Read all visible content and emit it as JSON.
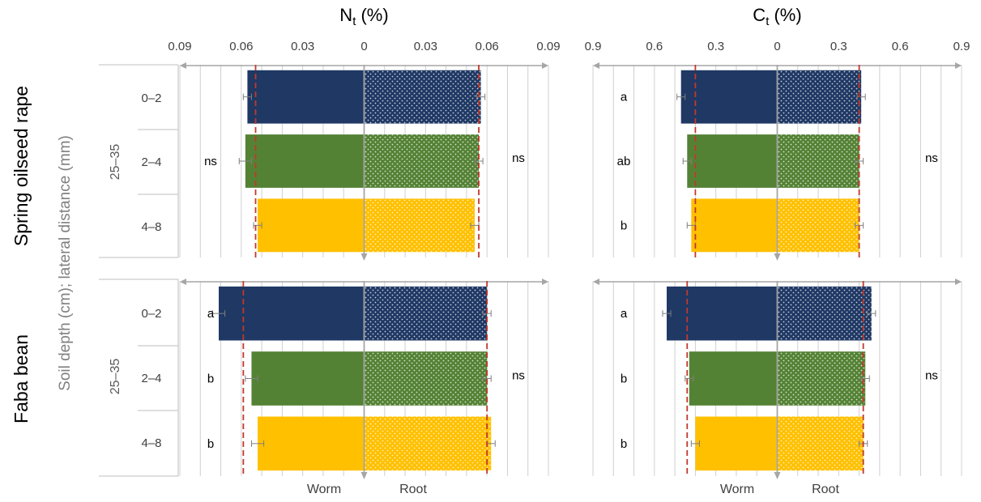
{
  "y_axis": {
    "row_labels": [
      "Spring oilseed rape",
      "Faba bean"
    ],
    "group_label": "Soil depth (cm); lateral distance (mm)",
    "soil_depth": "25–35",
    "distances": [
      "0–2",
      "2–4",
      "4–8"
    ]
  },
  "x_axis_labels": {
    "left": "Worm",
    "right": "Root"
  },
  "colors": {
    "0–2": "#1f3864",
    "2–4": "#548235",
    "4–8": "#ffc000",
    "mean_line": "#c0392b",
    "grid": "#d0d0d0",
    "axis_arrow": "#a6a6a6"
  },
  "chart_data": [
    {
      "type": "bar",
      "orientation": "horizontal-mirrored",
      "panel": "Nt Spring oilseed rape",
      "title_main": "N",
      "title_sub": "t",
      "title_tail": " (%)",
      "tick_labels": [
        "0.09",
        "0.06",
        "0.03",
        "0",
        "0.03",
        "0.06",
        "0.09"
      ],
      "xlim": [
        -0.09,
        0.09
      ],
      "categories": [
        "0–2",
        "2–4",
        "4–8"
      ],
      "series": [
        {
          "name": "Worm",
          "values": [
            0.057,
            0.058,
            0.052
          ],
          "errors": [
            0.002,
            0.003,
            0.002
          ]
        },
        {
          "name": "Root",
          "values": [
            0.057,
            0.056,
            0.054
          ],
          "errors": [
            0.002,
            0.002,
            0.002
          ]
        }
      ],
      "mean_lines": [
        0.053,
        0.056
      ],
      "letters_worm": [
        "",
        "ns",
        ""
      ],
      "letters_root": [
        "",
        "ns",
        ""
      ]
    },
    {
      "type": "bar",
      "orientation": "horizontal-mirrored",
      "panel": "Ct Spring oilseed rape",
      "title_main": "C",
      "title_sub": "t",
      "title_tail": " (%)",
      "tick_labels": [
        "0.9",
        "0.6",
        "0.3",
        "0",
        "0.3",
        "0.6",
        "0.9"
      ],
      "xlim": [
        -0.9,
        0.9
      ],
      "categories": [
        "0–2",
        "2–4",
        "4–8"
      ],
      "series": [
        {
          "name": "Worm",
          "values": [
            0.47,
            0.44,
            0.42
          ],
          "errors": [
            0.02,
            0.02,
            0.02
          ]
        },
        {
          "name": "Root",
          "values": [
            0.41,
            0.4,
            0.4
          ],
          "errors": [
            0.02,
            0.02,
            0.02
          ]
        }
      ],
      "mean_lines": [
        0.4,
        0.4
      ],
      "letters_worm": [
        "a",
        "ab",
        "b"
      ],
      "letters_root": [
        "",
        "ns",
        ""
      ]
    },
    {
      "type": "bar",
      "orientation": "horizontal-mirrored",
      "panel": "Nt Faba bean",
      "tick_labels": [],
      "xlim": [
        -0.09,
        0.09
      ],
      "categories": [
        "0–2",
        "2–4",
        "4–8"
      ],
      "series": [
        {
          "name": "Worm",
          "values": [
            0.071,
            0.055,
            0.052
          ],
          "errors": [
            0.003,
            0.003,
            0.003
          ]
        },
        {
          "name": "Root",
          "values": [
            0.06,
            0.06,
            0.062
          ],
          "errors": [
            0.002,
            0.002,
            0.002
          ]
        }
      ],
      "mean_lines": [
        0.059,
        0.06
      ],
      "letters_worm": [
        "a",
        "b",
        "b"
      ],
      "letters_root": [
        "",
        "ns",
        ""
      ]
    },
    {
      "type": "bar",
      "orientation": "horizontal-mirrored",
      "panel": "Ct Faba bean",
      "tick_labels": [],
      "xlim": [
        -0.9,
        0.9
      ],
      "categories": [
        "0–2",
        "2–4",
        "4–8"
      ],
      "series": [
        {
          "name": "Worm",
          "values": [
            0.54,
            0.43,
            0.4
          ],
          "errors": [
            0.02,
            0.02,
            0.02
          ]
        },
        {
          "name": "Root",
          "values": [
            0.46,
            0.43,
            0.42
          ],
          "errors": [
            0.02,
            0.02,
            0.02
          ]
        }
      ],
      "mean_lines": [
        0.44,
        0.42
      ],
      "letters_worm": [
        "a",
        "b",
        "b"
      ],
      "letters_root": [
        "",
        "ns",
        ""
      ]
    }
  ]
}
